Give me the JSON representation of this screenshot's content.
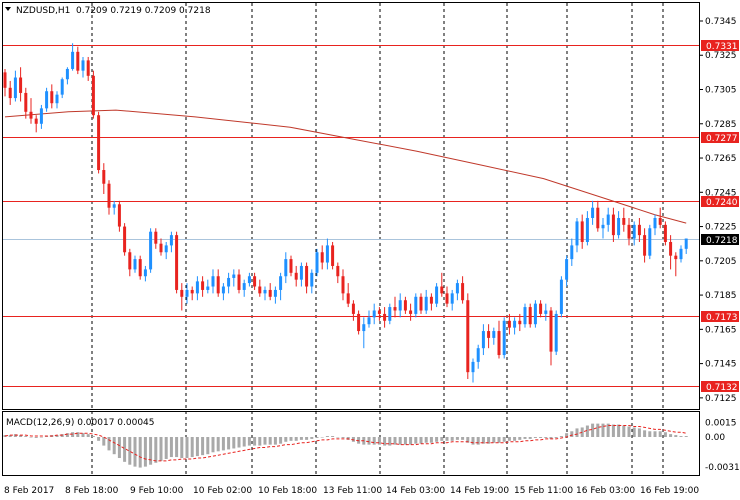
{
  "chart_data": [
    {
      "type": "candlestick",
      "header": {
        "symbol_label": "NZDUSD,H1",
        "ohlc_text": "0.7209 0.7219 0.7209 0.7218"
      },
      "y_ticks": [
        "0.7345",
        "0.7325",
        "0.7305",
        "0.7285",
        "0.7265",
        "0.7245",
        "0.7225",
        "0.7205",
        "0.7185",
        "0.7165",
        "0.7145",
        "0.7125"
      ],
      "ylim": [
        0.712,
        0.735
      ],
      "x_tick_labels": [
        "8 Feb 2017",
        "8 Feb 18:00",
        "9 Feb 10:00",
        "10 Feb 02:00",
        "10 Feb 18:00",
        "13 Feb 11:00",
        "14 Feb 03:00",
        "14 Feb 19:00",
        "15 Feb 11:00",
        "16 Feb 03:00",
        "16 Feb 19:00"
      ],
      "current_price_label": "0.7218",
      "current_price": 0.7218,
      "horizontal_levels": [
        {
          "label": "0.7331",
          "value": 0.7331,
          "color": "#e8231f"
        },
        {
          "label": "0.7277",
          "value": 0.7277,
          "color": "#e8231f"
        },
        {
          "label": "0.7240",
          "value": 0.724,
          "color": "#e8231f"
        },
        {
          "label": "0.7173",
          "value": 0.7173,
          "color": "#e8231f"
        },
        {
          "label": "0.7132",
          "value": 0.7132,
          "color": "#e8231f"
        }
      ],
      "moving_average": {
        "color": "#c0392b",
        "values": [
          [
            0,
            0.7289
          ],
          [
            20,
            0.7292
          ],
          [
            35,
            0.7293
          ],
          [
            60,
            0.7289
          ],
          [
            90,
            0.7283
          ],
          [
            110,
            0.7276
          ],
          [
            130,
            0.7269
          ],
          [
            150,
            0.7261
          ],
          [
            170,
            0.7253
          ],
          [
            190,
            0.7241
          ],
          [
            205,
            0.7232
          ],
          [
            215,
            0.7227
          ]
        ]
      },
      "colors": {
        "bull": "#1e90ff",
        "bear": "#e8231f",
        "grid": "#000000",
        "level": "#e8231f",
        "current_line": "#aac4dc"
      },
      "candles": [
        [
          0.7315,
          0.7317,
          0.7301,
          0.7306
        ],
        [
          0.7306,
          0.731,
          0.7296,
          0.73
        ],
        [
          0.73,
          0.7316,
          0.7298,
          0.7312
        ],
        [
          0.7312,
          0.7318,
          0.7298,
          0.7303
        ],
        [
          0.7303,
          0.7306,
          0.7288,
          0.7292
        ],
        [
          0.7292,
          0.73,
          0.7285,
          0.7288
        ],
        [
          0.7288,
          0.729,
          0.728,
          0.7285
        ],
        [
          0.7285,
          0.7296,
          0.7282,
          0.7294
        ],
        [
          0.7294,
          0.7306,
          0.7292,
          0.7304
        ],
        [
          0.7304,
          0.7308,
          0.7294,
          0.7297
        ],
        [
          0.7297,
          0.7304,
          0.7294,
          0.7302
        ],
        [
          0.7302,
          0.7312,
          0.73,
          0.7311
        ],
        [
          0.7311,
          0.7318,
          0.7308,
          0.7317
        ],
        [
          0.7317,
          0.7332,
          0.7316,
          0.7327
        ],
        [
          0.7327,
          0.733,
          0.7314,
          0.7316
        ],
        [
          0.7316,
          0.7324,
          0.7312,
          0.7322
        ],
        [
          0.7322,
          0.7324,
          0.731,
          0.7313
        ],
        [
          0.7313,
          0.7316,
          0.7288,
          0.729
        ],
        [
          0.729,
          0.7292,
          0.7256,
          0.7258
        ],
        [
          0.7258,
          0.7262,
          0.7244,
          0.725
        ],
        [
          0.725,
          0.7252,
          0.7232,
          0.7236
        ],
        [
          0.7236,
          0.724,
          0.7232,
          0.7238
        ],
        [
          0.7238,
          0.724,
          0.7222,
          0.7225
        ],
        [
          0.7225,
          0.7227,
          0.7208,
          0.721
        ],
        [
          0.721,
          0.7212,
          0.7196,
          0.72
        ],
        [
          0.72,
          0.7208,
          0.7198,
          0.7206
        ],
        [
          0.7206,
          0.7208,
          0.7194,
          0.7196
        ],
        [
          0.7196,
          0.7202,
          0.7193,
          0.72
        ],
        [
          0.72,
          0.7224,
          0.7198,
          0.7222
        ],
        [
          0.7222,
          0.7224,
          0.7212,
          0.7215
        ],
        [
          0.7215,
          0.7218,
          0.7208,
          0.721
        ],
        [
          0.721,
          0.7216,
          0.7206,
          0.7214
        ],
        [
          0.7214,
          0.7222,
          0.721,
          0.722
        ],
        [
          0.722,
          0.7222,
          0.7186,
          0.7188
        ],
        [
          0.7188,
          0.7192,
          0.7176,
          0.7184
        ],
        [
          0.7184,
          0.7192,
          0.718,
          0.7188
        ],
        [
          0.7188,
          0.719,
          0.7182,
          0.7186
        ],
        [
          0.7186,
          0.7196,
          0.7182,
          0.7193
        ],
        [
          0.7193,
          0.7196,
          0.7184,
          0.7188
        ],
        [
          0.7188,
          0.7194,
          0.7186,
          0.719
        ],
        [
          0.719,
          0.72,
          0.7186,
          0.7196
        ],
        [
          0.7196,
          0.72,
          0.7184,
          0.7186
        ],
        [
          0.7186,
          0.7192,
          0.7182,
          0.719
        ],
        [
          0.719,
          0.7198,
          0.7186,
          0.7195
        ],
        [
          0.7195,
          0.72,
          0.719,
          0.7197
        ],
        [
          0.7197,
          0.72,
          0.7186,
          0.7188
        ],
        [
          0.7188,
          0.7194,
          0.7184,
          0.7192
        ],
        [
          0.7192,
          0.7198,
          0.719,
          0.7196
        ],
        [
          0.7196,
          0.7198,
          0.7188,
          0.719
        ],
        [
          0.719,
          0.7194,
          0.7184,
          0.7186
        ],
        [
          0.7186,
          0.719,
          0.7182,
          0.7188
        ],
        [
          0.7188,
          0.7192,
          0.7182,
          0.7184
        ],
        [
          0.7184,
          0.719,
          0.718,
          0.7188
        ],
        [
          0.7188,
          0.7198,
          0.7182,
          0.7196
        ],
        [
          0.7196,
          0.721,
          0.7192,
          0.7206
        ],
        [
          0.7206,
          0.7208,
          0.7196,
          0.7198
        ],
        [
          0.7198,
          0.7202,
          0.719,
          0.7194
        ],
        [
          0.7194,
          0.7204,
          0.719,
          0.7202
        ],
        [
          0.7202,
          0.7204,
          0.7186,
          0.719
        ],
        [
          0.719,
          0.72,
          0.7186,
          0.7198
        ],
        [
          0.7198,
          0.7212,
          0.7196,
          0.721
        ],
        [
          0.721,
          0.7214,
          0.72,
          0.7204
        ],
        [
          0.7204,
          0.7218,
          0.72,
          0.7214
        ],
        [
          0.7214,
          0.7216,
          0.72,
          0.7202
        ],
        [
          0.7202,
          0.7204,
          0.7192,
          0.7196
        ],
        [
          0.7196,
          0.72,
          0.7182,
          0.7186
        ],
        [
          0.7186,
          0.7192,
          0.7178,
          0.718
        ],
        [
          0.718,
          0.7182,
          0.717,
          0.7174
        ],
        [
          0.7174,
          0.7176,
          0.7162,
          0.7164
        ],
        [
          0.7164,
          0.7172,
          0.7154,
          0.7168
        ],
        [
          0.7168,
          0.7176,
          0.7166,
          0.7172
        ],
        [
          0.7172,
          0.718,
          0.7168,
          0.7176
        ],
        [
          0.7176,
          0.7178,
          0.717,
          0.7174
        ],
        [
          0.7174,
          0.7178,
          0.7166,
          0.717
        ],
        [
          0.717,
          0.718,
          0.7168,
          0.7178
        ],
        [
          0.7178,
          0.7184,
          0.7172,
          0.7176
        ],
        [
          0.7176,
          0.7186,
          0.7172,
          0.7182
        ],
        [
          0.7182,
          0.7184,
          0.7174,
          0.7176
        ],
        [
          0.7176,
          0.718,
          0.717,
          0.7174
        ],
        [
          0.7174,
          0.7186,
          0.7172,
          0.7184
        ],
        [
          0.7184,
          0.7186,
          0.7174,
          0.7176
        ],
        [
          0.7176,
          0.7188,
          0.7174,
          0.7184
        ],
        [
          0.7184,
          0.7186,
          0.7176,
          0.718
        ],
        [
          0.718,
          0.7192,
          0.7178,
          0.719
        ],
        [
          0.719,
          0.7198,
          0.7184,
          0.7186
        ],
        [
          0.7186,
          0.719,
          0.7178,
          0.718
        ],
        [
          0.718,
          0.7188,
          0.7176,
          0.7186
        ],
        [
          0.7186,
          0.7194,
          0.7182,
          0.7192
        ],
        [
          0.7192,
          0.7196,
          0.718,
          0.7182
        ],
        [
          0.7182,
          0.7186,
          0.7136,
          0.714
        ],
        [
          0.714,
          0.7148,
          0.7134,
          0.7146
        ],
        [
          0.7146,
          0.7156,
          0.7142,
          0.7154
        ],
        [
          0.7154,
          0.7168,
          0.715,
          0.7164
        ],
        [
          0.7164,
          0.7168,
          0.7154,
          0.716
        ],
        [
          0.716,
          0.7166,
          0.7156,
          0.7164
        ],
        [
          0.7164,
          0.717,
          0.7148,
          0.715
        ],
        [
          0.715,
          0.7172,
          0.7148,
          0.717
        ],
        [
          0.717,
          0.7174,
          0.7162,
          0.7166
        ],
        [
          0.7166,
          0.7172,
          0.7162,
          0.717
        ],
        [
          0.717,
          0.7174,
          0.7164,
          0.7168
        ],
        [
          0.7168,
          0.718,
          0.7166,
          0.7178
        ],
        [
          0.7178,
          0.718,
          0.7166,
          0.7168
        ],
        [
          0.7168,
          0.7182,
          0.7166,
          0.718
        ],
        [
          0.718,
          0.7182,
          0.7172,
          0.7174
        ],
        [
          0.7174,
          0.718,
          0.717,
          0.7176
        ],
        [
          0.7176,
          0.7178,
          0.7144,
          0.7152
        ],
        [
          0.7152,
          0.7176,
          0.715,
          0.7174
        ],
        [
          0.7174,
          0.7196,
          0.7172,
          0.7194
        ],
        [
          0.7194,
          0.7208,
          0.719,
          0.7206
        ],
        [
          0.7206,
          0.7218,
          0.7202,
          0.7214
        ],
        [
          0.7214,
          0.723,
          0.721,
          0.7228
        ],
        [
          0.7228,
          0.7232,
          0.7212,
          0.7216
        ],
        [
          0.7216,
          0.7234,
          0.7214,
          0.723
        ],
        [
          0.723,
          0.724,
          0.7226,
          0.7236
        ],
        [
          0.7236,
          0.724,
          0.7222,
          0.7224
        ],
        [
          0.7224,
          0.723,
          0.7218,
          0.7226
        ],
        [
          0.7226,
          0.7236,
          0.7222,
          0.7232
        ],
        [
          0.7232,
          0.7236,
          0.7216,
          0.722
        ],
        [
          0.722,
          0.7234,
          0.7218,
          0.723
        ],
        [
          0.723,
          0.7236,
          0.7222,
          0.7226
        ],
        [
          0.7226,
          0.723,
          0.7214,
          0.7218
        ],
        [
          0.7218,
          0.7228,
          0.7214,
          0.7226
        ],
        [
          0.7226,
          0.723,
          0.7216,
          0.722
        ],
        [
          0.722,
          0.7224,
          0.7204,
          0.7208
        ],
        [
          0.7208,
          0.7226,
          0.7206,
          0.7224
        ],
        [
          0.7224,
          0.7232,
          0.722,
          0.723
        ],
        [
          0.723,
          0.7236,
          0.7224,
          0.7226
        ],
        [
          0.7226,
          0.7228,
          0.7214,
          0.7216
        ],
        [
          0.7216,
          0.722,
          0.72,
          0.7208
        ],
        [
          0.7208,
          0.721,
          0.7196,
          0.7206
        ],
        [
          0.7206,
          0.7214,
          0.7204,
          0.7212
        ],
        [
          0.7212,
          0.7218,
          0.7209,
          0.7218
        ]
      ]
    },
    {
      "type": "histogram",
      "header": {
        "label": "MACD(12,26,9) 0.00017 0.00045"
      },
      "y_ticks": [
        "0.0015",
        "0.00",
        "-0.00314"
      ],
      "ylim": [
        -0.0036,
        0.002
      ],
      "colors": {
        "bars": "#a9a9a9",
        "signal": "#e8231f"
      },
      "values": [
        0.0002,
        0.0002,
        0.0003,
        0.0002,
        0.0001,
        0.0,
        -0.0001,
        0.0,
        0.0001,
        0.0002,
        0.0002,
        0.0003,
        0.0004,
        0.0005,
        0.0005,
        0.0004,
        0.0003,
        0.0001,
        -0.0004,
        -0.0009,
        -0.0014,
        -0.0018,
        -0.0022,
        -0.0026,
        -0.0029,
        -0.0031,
        -0.0032,
        -0.0031,
        -0.0029,
        -0.0027,
        -0.0025,
        -0.0023,
        -0.0021,
        -0.0021,
        -0.0022,
        -0.0022,
        -0.0021,
        -0.002,
        -0.0019,
        -0.0018,
        -0.0016,
        -0.0015,
        -0.0014,
        -0.0013,
        -0.0012,
        -0.0011,
        -0.001,
        -0.0009,
        -0.0009,
        -0.0009,
        -0.0008,
        -0.0008,
        -0.0008,
        -0.0007,
        -0.0005,
        -0.0004,
        -0.0004,
        -0.0003,
        -0.0003,
        -0.0002,
        -0.0001,
        0.0,
        0.0001,
        0.0001,
        0.0,
        -0.0001,
        -0.0003,
        -0.0005,
        -0.0007,
        -0.0008,
        -0.0008,
        -0.0008,
        -0.0008,
        -0.0009,
        -0.0009,
        -0.0008,
        -0.0008,
        -0.0008,
        -0.0008,
        -0.0007,
        -0.0007,
        -0.0006,
        -0.0006,
        -0.0005,
        -0.0004,
        -0.0004,
        -0.0004,
        -0.0003,
        -0.0003,
        -0.0006,
        -0.0008,
        -0.0008,
        -0.0007,
        -0.0007,
        -0.0006,
        -0.0006,
        -0.0005,
        -0.0004,
        -0.0004,
        -0.0003,
        -0.0002,
        -0.0002,
        -0.0001,
        -0.0001,
        -0.0001,
        -0.0002,
        -0.0001,
        0.0001,
        0.0004,
        0.0006,
        0.0009,
        0.001,
        0.0012,
        0.0014,
        0.0014,
        0.0014,
        0.0014,
        0.0013,
        0.0013,
        0.0012,
        0.0011,
        0.001,
        0.0009,
        0.0007,
        0.0006,
        0.0006,
        0.0006,
        0.0005,
        0.0003,
        0.0002,
        0.0001,
        0.0001
      ],
      "signal": [
        0.0001,
        0.0002,
        0.0002,
        0.0002,
        0.0002,
        0.0001,
        0.0001,
        0.0001,
        0.0001,
        0.0001,
        0.0002,
        0.0002,
        0.0003,
        0.0003,
        0.0004,
        0.0004,
        0.0004,
        0.0003,
        0.0002,
        0.0,
        -0.0003,
        -0.0006,
        -0.0009,
        -0.0012,
        -0.0015,
        -0.0018,
        -0.0021,
        -0.0023,
        -0.0024,
        -0.0025,
        -0.0025,
        -0.0025,
        -0.0024,
        -0.0024,
        -0.0023,
        -0.0023,
        -0.0023,
        -0.0022,
        -0.0022,
        -0.0021,
        -0.002,
        -0.0019,
        -0.0018,
        -0.0017,
        -0.0016,
        -0.0015,
        -0.0014,
        -0.0013,
        -0.0012,
        -0.0011,
        -0.0011,
        -0.001,
        -0.001,
        -0.0009,
        -0.0008,
        -0.0008,
        -0.0007,
        -0.0006,
        -0.0006,
        -0.0005,
        -0.0004,
        -0.0003,
        -0.0003,
        -0.0002,
        -0.0002,
        -0.0002,
        -0.0002,
        -0.0003,
        -0.0004,
        -0.0004,
        -0.0005,
        -0.0006,
        -0.0006,
        -0.0007,
        -0.0007,
        -0.0007,
        -0.0008,
        -0.0008,
        -0.0008,
        -0.0008,
        -0.0007,
        -0.0007,
        -0.0007,
        -0.0006,
        -0.0006,
        -0.0006,
        -0.0005,
        -0.0005,
        -0.0005,
        -0.0005,
        -0.0006,
        -0.0006,
        -0.0006,
        -0.0006,
        -0.0006,
        -0.0006,
        -0.0006,
        -0.0005,
        -0.0005,
        -0.0005,
        -0.0004,
        -0.0004,
        -0.0003,
        -0.0003,
        -0.0002,
        -0.0002,
        -0.0002,
        -0.0001,
        0.0,
        0.0002,
        0.0003,
        0.0005,
        0.0007,
        0.0008,
        0.001,
        0.0011,
        0.0012,
        0.0012,
        0.0012,
        0.0012,
        0.0012,
        0.0011,
        0.0011,
        0.001,
        0.0009,
        0.0008,
        0.0008,
        0.0007,
        0.0006,
        0.0005,
        0.0005,
        0.0004
      ]
    }
  ]
}
